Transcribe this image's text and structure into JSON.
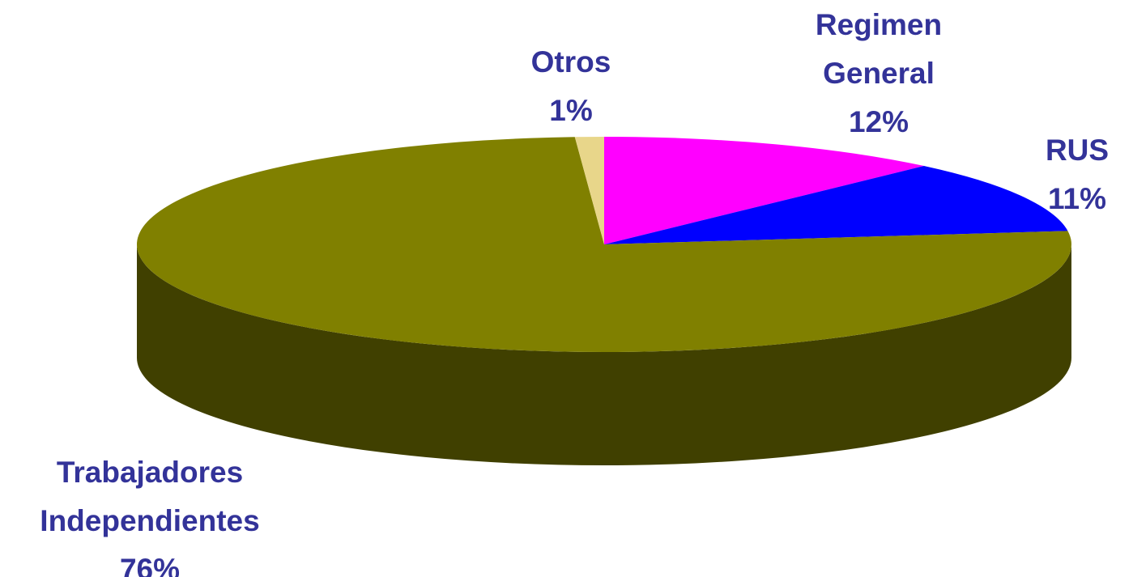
{
  "chart_data": {
    "type": "pie",
    "categories": [
      "Regimen General",
      "RUS",
      "Trabajadores Independientes",
      "Otros"
    ],
    "values": [
      12,
      11,
      76,
      1
    ],
    "value_labels": [
      "12%",
      "11%",
      "76%",
      "1%"
    ],
    "colors": [
      "#ff00ff",
      "#0000ff",
      "#808000",
      "#e8d68a"
    ]
  }
}
